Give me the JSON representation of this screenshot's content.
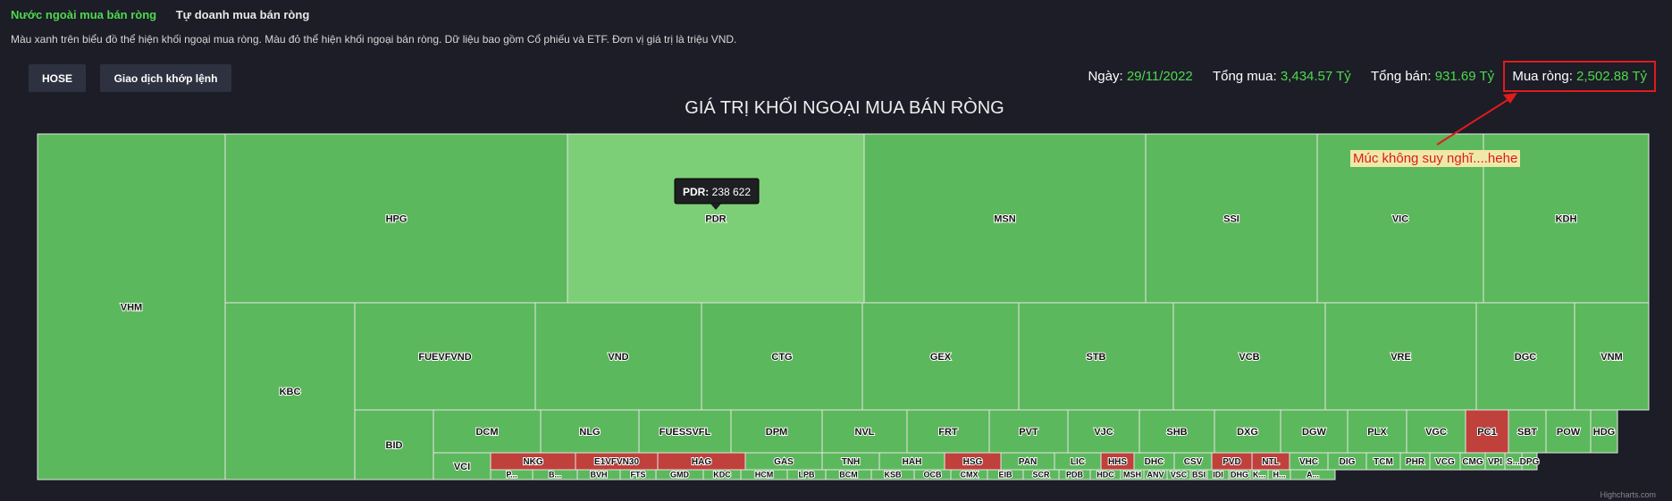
{
  "tabs": [
    {
      "label": "Nước ngoài mua bán ròng",
      "active": true
    },
    {
      "label": "Tự doanh mua bán ròng",
      "active": false
    }
  ],
  "description": "Màu xanh trên biểu đồ thể hiện khối ngoại mua ròng. Màu đỏ thể hiện khối ngoại bán ròng. Dữ liệu bao gồm Cổ phiếu và ETF. Đơn vị giá trị là triệu VND.",
  "buttons": {
    "exchange": "HOSE",
    "mode": "Giao dịch khớp lệnh"
  },
  "stats": {
    "date_label": "Ngày:",
    "date_value": "29/11/2022",
    "buy_label": "Tổng mua:",
    "buy_value": "3,434.57 Tỷ",
    "sell_label": "Tổng bán:",
    "sell_value": "931.69 Tỷ",
    "net_label": "Mua ròng:",
    "net_value": "2,502.88 Tỷ"
  },
  "annotation": "Múc không suy nghĩ....hehe",
  "tooltip": {
    "ticker": "PDR",
    "value": "238 622"
  },
  "credit": "Highcharts.com",
  "colors": {
    "buy": "#5cb85c",
    "buy_hover": "#7ccf77",
    "sell": "#c0403b",
    "accent": "#4dd94d",
    "annotation": "#e01b1b"
  },
  "chart_data": {
    "type": "treemap",
    "title": "GIÁ TRỊ KHỐI NGOẠI MUA BÁN RÒNG",
    "unit": "triệu VND",
    "highlighted": "PDR",
    "items": [
      {
        "name": "VHM",
        "side": "buy"
      },
      {
        "name": "HPG",
        "side": "buy"
      },
      {
        "name": "PDR",
        "side": "buy",
        "value": 238622
      },
      {
        "name": "MSN",
        "side": "buy"
      },
      {
        "name": "SSI",
        "side": "buy"
      },
      {
        "name": "VIC",
        "side": "buy"
      },
      {
        "name": "KDH",
        "side": "buy"
      },
      {
        "name": "KBC",
        "side": "buy"
      },
      {
        "name": "FUEVFVND",
        "side": "buy"
      },
      {
        "name": "VND",
        "side": "buy"
      },
      {
        "name": "CTG",
        "side": "buy"
      },
      {
        "name": "GEX",
        "side": "buy"
      },
      {
        "name": "STB",
        "side": "buy"
      },
      {
        "name": "VCB",
        "side": "buy"
      },
      {
        "name": "VRE",
        "side": "buy"
      },
      {
        "name": "DGC",
        "side": "buy"
      },
      {
        "name": "VNM",
        "side": "buy"
      },
      {
        "name": "BID",
        "side": "buy"
      },
      {
        "name": "DCM",
        "side": "buy"
      },
      {
        "name": "NLG",
        "side": "buy"
      },
      {
        "name": "FUESSVFL",
        "side": "buy"
      },
      {
        "name": "DPM",
        "side": "buy"
      },
      {
        "name": "NVL",
        "side": "buy"
      },
      {
        "name": "FRT",
        "side": "buy"
      },
      {
        "name": "PVT",
        "side": "buy"
      },
      {
        "name": "VJC",
        "side": "buy"
      },
      {
        "name": "SHB",
        "side": "buy"
      },
      {
        "name": "DXG",
        "side": "buy"
      },
      {
        "name": "DGW",
        "side": "buy"
      },
      {
        "name": "PLX",
        "side": "buy"
      },
      {
        "name": "VGC",
        "side": "buy"
      },
      {
        "name": "PC1",
        "side": "sell"
      },
      {
        "name": "SBT",
        "side": "buy"
      },
      {
        "name": "POW",
        "side": "buy"
      },
      {
        "name": "HDG",
        "side": "buy"
      },
      {
        "name": "VCI",
        "side": "buy"
      },
      {
        "name": "NKG",
        "side": "sell"
      },
      {
        "name": "E1VFVN30",
        "side": "sell"
      },
      {
        "name": "HAG",
        "side": "sell"
      },
      {
        "name": "GAS",
        "side": "buy"
      },
      {
        "name": "TNH",
        "side": "buy"
      },
      {
        "name": "HAH",
        "side": "buy"
      },
      {
        "name": "HSG",
        "side": "sell"
      },
      {
        "name": "PAN",
        "side": "buy"
      },
      {
        "name": "LIC",
        "side": "buy"
      },
      {
        "name": "HHS",
        "side": "sell"
      },
      {
        "name": "DHC",
        "side": "buy"
      },
      {
        "name": "CSV",
        "side": "buy"
      },
      {
        "name": "PVD",
        "side": "sell"
      },
      {
        "name": "NTL",
        "side": "sell"
      },
      {
        "name": "VHC",
        "side": "buy"
      },
      {
        "name": "DIG",
        "side": "buy"
      },
      {
        "name": "TCM",
        "side": "buy"
      },
      {
        "name": "PHR",
        "side": "buy"
      },
      {
        "name": "VCG",
        "side": "buy"
      },
      {
        "name": "CMG",
        "side": "buy"
      },
      {
        "name": "VPI",
        "side": "buy"
      },
      {
        "name": "S...",
        "side": "buy"
      },
      {
        "name": "DPG",
        "side": "buy"
      },
      {
        "name": "P...",
        "side": "buy"
      },
      {
        "name": "B...",
        "side": "buy"
      },
      {
        "name": "BVH",
        "side": "buy"
      },
      {
        "name": "FTS",
        "side": "buy"
      },
      {
        "name": "GMD",
        "side": "buy"
      },
      {
        "name": "KDC",
        "side": "buy"
      },
      {
        "name": "HCM",
        "side": "buy"
      },
      {
        "name": "LPB",
        "side": "buy"
      },
      {
        "name": "BCM",
        "side": "buy"
      },
      {
        "name": "KSB",
        "side": "buy"
      },
      {
        "name": "OCB",
        "side": "buy"
      },
      {
        "name": "CMX",
        "side": "buy"
      },
      {
        "name": "EIB",
        "side": "buy"
      },
      {
        "name": "SCR",
        "side": "buy"
      },
      {
        "name": "PDB",
        "side": "buy"
      },
      {
        "name": "HDC",
        "side": "buy"
      },
      {
        "name": "MSH",
        "side": "buy"
      },
      {
        "name": "ANV",
        "side": "buy"
      },
      {
        "name": "VSC",
        "side": "buy"
      },
      {
        "name": "BSI",
        "side": "buy"
      },
      {
        "name": "IDI",
        "side": "buy"
      },
      {
        "name": "DHG",
        "side": "buy"
      },
      {
        "name": "K...",
        "side": "buy"
      },
      {
        "name": "H...",
        "side": "buy"
      },
      {
        "name": "A...",
        "side": "buy"
      },
      {
        "name": "B...",
        "side": "sell"
      },
      {
        "name": "C...",
        "side": "buy"
      }
    ]
  }
}
